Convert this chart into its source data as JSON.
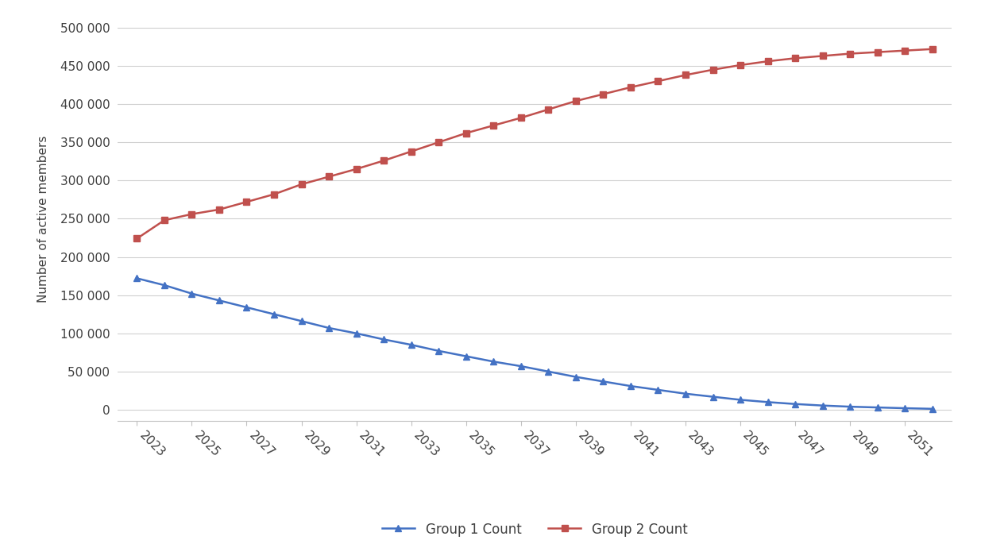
{
  "years": [
    2023,
    2024,
    2025,
    2026,
    2027,
    2028,
    2029,
    2030,
    2031,
    2032,
    2033,
    2034,
    2035,
    2036,
    2037,
    2038,
    2039,
    2040,
    2041,
    2042,
    2043,
    2044,
    2045,
    2046,
    2047,
    2048,
    2049,
    2050,
    2051,
    2052
  ],
  "group1": [
    172000,
    163000,
    152000,
    143000,
    134000,
    125000,
    116000,
    107000,
    100000,
    92000,
    85000,
    77000,
    70000,
    63000,
    57000,
    50000,
    43000,
    37000,
    31000,
    26000,
    21000,
    17000,
    13000,
    10000,
    7500,
    5500,
    4000,
    3000,
    2000,
    1200
  ],
  "group2": [
    224000,
    248000,
    256000,
    262000,
    272000,
    282000,
    295000,
    305000,
    315000,
    326000,
    338000,
    350000,
    362000,
    372000,
    382000,
    393000,
    404000,
    413000,
    422000,
    430000,
    438000,
    445000,
    451000,
    456000,
    460000,
    463000,
    466000,
    468000,
    470000,
    472000
  ],
  "group1_color": "#4472C4",
  "group2_color": "#C0504D",
  "group1_label": "Group 1 Count",
  "group2_label": "Group 2 Count",
  "ylabel": "Number of active members",
  "ylim": [
    -15000,
    515000
  ],
  "yticks": [
    0,
    50000,
    100000,
    150000,
    200000,
    250000,
    300000,
    350000,
    400000,
    450000,
    500000
  ],
  "ytick_labels": [
    "0",
    "50 000",
    "100 000",
    "150 000",
    "200 000",
    "250 000",
    "300 000",
    "350 000",
    "400 000",
    "450 000",
    "500 000"
  ],
  "xtick_labels": [
    "2023",
    "2025",
    "2027",
    "2029",
    "2031",
    "2033",
    "2035",
    "2037",
    "2039",
    "2041",
    "2043",
    "2045",
    "2047",
    "2049",
    "2051"
  ],
  "xtick_positions": [
    2023,
    2025,
    2027,
    2029,
    2031,
    2033,
    2035,
    2037,
    2039,
    2041,
    2043,
    2045,
    2047,
    2049,
    2051
  ],
  "background_color": "#ffffff",
  "grid_color": "#d0d0d0",
  "marker_size": 6,
  "line_width": 1.8,
  "xlim_left": 2022.3,
  "xlim_right": 2052.7
}
